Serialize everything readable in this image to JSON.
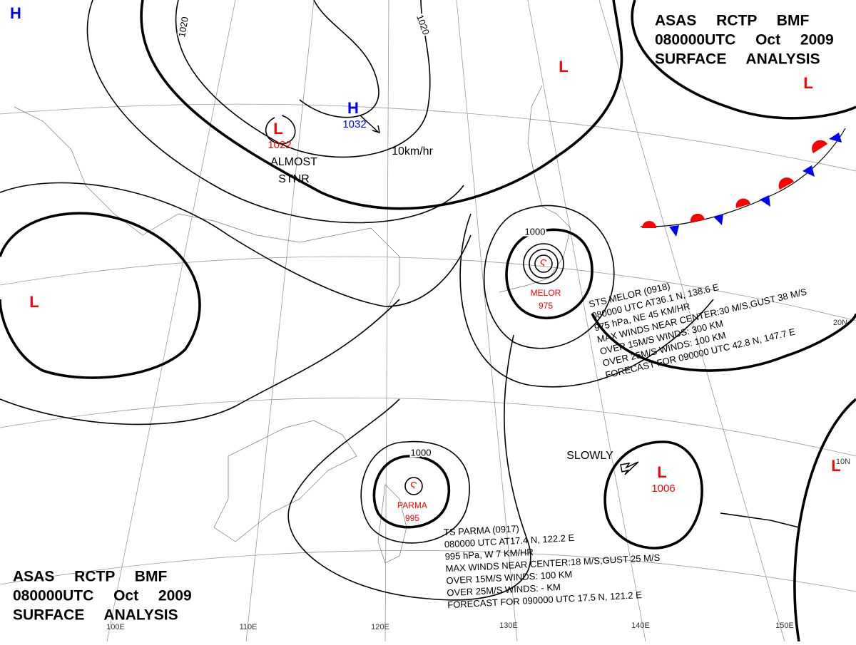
{
  "header_top": {
    "lines": [
      "ASAS RCTP BMF",
      "080000UTC Oct 2009",
      "SURFACE ANALYSIS"
    ]
  },
  "header_bottom": {
    "lines": [
      "ASAS RCTP BMF",
      "080000UTC Oct 2009",
      "SURFACE ANALYSIS"
    ]
  },
  "systems": [
    {
      "label": "H",
      "color": "blue"
    },
    {
      "label": "H",
      "value": "1032",
      "color": "blue"
    },
    {
      "label": "L",
      "value": "1022",
      "color": "red"
    },
    {
      "label": "L",
      "color": "red"
    },
    {
      "label": "L",
      "color": "red"
    },
    {
      "label": "L",
      "color": "red"
    },
    {
      "label": "L",
      "value": "1006",
      "color": "red"
    },
    {
      "label": "L",
      "color": "red"
    }
  ],
  "typhoon_labels": [
    {
      "name": "MELOR",
      "value": "975"
    },
    {
      "name": "PARMA",
      "value": "995"
    }
  ],
  "isobar_labels": [
    "1020",
    "1020",
    "1000",
    "1000"
  ],
  "annotations": [
    "ALMOST",
    "STNR",
    "10km/hr",
    "SLOWLY"
  ],
  "melor_text": {
    "lines": [
      "STS MELOR (0918)",
      "080000 UTC AT36.1 N, 138.6 E",
      "975 hPa, NE 45 KM/HR",
      "MAX WINDS NEAR CENTER:30 M/S,GUST 38 M/S",
      "OVER 15M/S WINDS: 300 KM",
      "OVER 25M/S WINDS: 100 KM",
      "FORECAST FOR 090000 UTC 42.8 N, 147.7 E"
    ]
  },
  "parma_text": {
    "lines": [
      "TS PARMA (0917)",
      "080000 UTC AT17.4 N, 122.2 E",
      "995 hPa, W 7 KM/HR",
      "MAX WINDS NEAR CENTER:18 M/S,GUST 25 M/S",
      "OVER 15M/S WINDS: 100 KM",
      "OVER 25M/S WINDS: - KM",
      "FORECAST FOR 090000 UTC 17.5 N, 121.2 E"
    ]
  },
  "grid_labels": [
    "100E",
    "110E",
    "120E",
    "130E",
    "140E",
    "150E",
    "20N",
    "10N"
  ]
}
